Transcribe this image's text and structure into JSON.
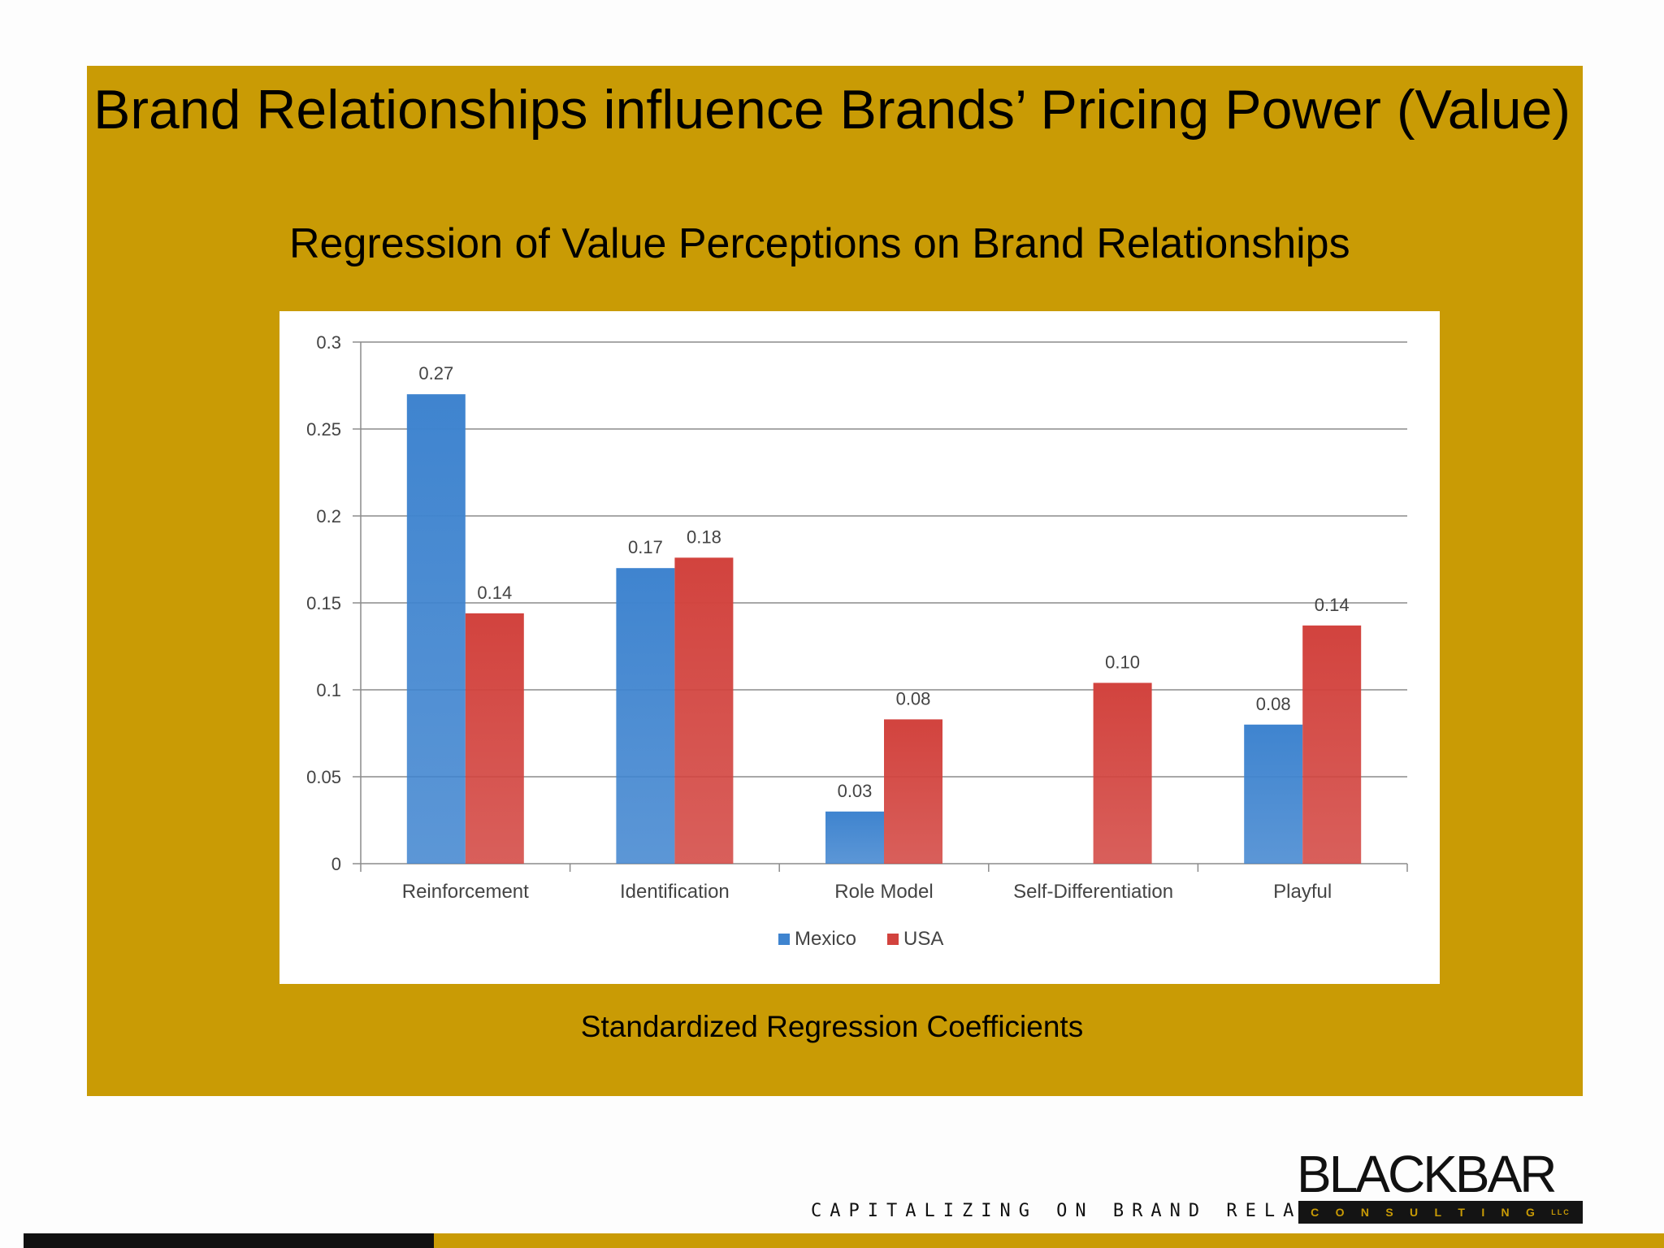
{
  "slide": {
    "title": "Brand Relationships influence Brands’ Pricing Power (Value)",
    "subtitle": "Regression of Value Perceptions on Brand Relationships",
    "caption": "Standardized Regression Coefficients",
    "tagline": "CAPITALIZING ON BRAND RELATIONSHIPS.",
    "logo_word": "BLACKBAR",
    "logo_sub": "CONSULTING",
    "logo_suffix": "LLC",
    "colors": {
      "panel": "#c99b05",
      "mexico": "#3f84cf",
      "usa": "#d2433e"
    }
  },
  "chart_data": {
    "type": "bar",
    "title": "",
    "xlabel": "",
    "ylabel": "",
    "ylim": [
      0,
      0.3
    ],
    "yticks": [
      "0",
      "0.05",
      "0.1",
      "0.15",
      "0.2",
      "0.25",
      "0.3"
    ],
    "yticks_values": [
      0,
      0.05,
      0.1,
      0.15,
      0.2,
      0.25,
      0.3
    ],
    "grid": true,
    "legend_position": "bottom",
    "categories": [
      "Reinforcement",
      "Identification",
      "Role Model",
      "Self-Differentiation",
      "Playful"
    ],
    "series": [
      {
        "name": "Mexico",
        "color": "#3f84cf",
        "values": [
          0.27,
          0.17,
          0.03,
          null,
          0.08
        ],
        "labels": [
          "0.27",
          "0.17",
          "0.03",
          "",
          "0.08"
        ]
      },
      {
        "name": "USA",
        "color": "#d2433e",
        "values": [
          0.144,
          0.176,
          0.083,
          0.104,
          0.137
        ],
        "labels": [
          "0.14",
          "0.18",
          "0.08",
          "0.10",
          "0.14"
        ]
      }
    ]
  }
}
